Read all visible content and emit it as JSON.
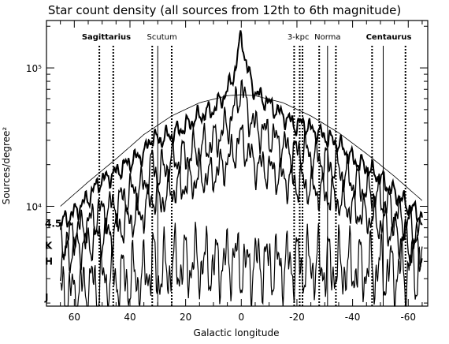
{
  "chart_data": {
    "type": "line",
    "title": "Star count density (all sources from 12th to 6th magnitude)",
    "xlabel": "Galactic longitude",
    "ylabel": "Sources/degree²",
    "x_reversed": true,
    "xlim": [
      70,
      -67
    ],
    "ylim": [
      1900,
      220000
    ],
    "yscale": "log",
    "x_ticks": [
      60,
      40,
      20,
      0,
      -20,
      -40,
      -60
    ],
    "x_tick_labels": [
      "60",
      "40",
      "20",
      "0",
      "-20",
      "-40",
      "-60"
    ],
    "y_ticks": [
      10000,
      100000
    ],
    "y_tick_labels": [
      "10⁴",
      "10⁵"
    ],
    "grid": false,
    "legend": "none",
    "arm_tangents": [
      {
        "name": "Sagittarius",
        "bold": true,
        "lines": [
          {
            "x": 51,
            "style": "dotted"
          },
          {
            "x": 46,
            "style": "dotted"
          }
        ]
      },
      {
        "name": "Scutum",
        "bold": false,
        "lines": [
          {
            "x": 32,
            "style": "dotted"
          },
          {
            "x": 30,
            "style": "solid"
          },
          {
            "x": 25,
            "style": "dotted"
          }
        ]
      },
      {
        "name": "3-kpc",
        "bold": false,
        "lines": [
          {
            "x": -19,
            "style": "dotted"
          },
          {
            "x": -21,
            "style": "dotted"
          },
          {
            "x": -22,
            "style": "dotted"
          }
        ]
      },
      {
        "name": "Norma",
        "bold": false,
        "lines": [
          {
            "x": -28,
            "style": "dotted"
          },
          {
            "x": -31,
            "style": "solid"
          },
          {
            "x": -34,
            "style": "dotted"
          }
        ]
      },
      {
        "name": "Centaurus",
        "bold": true,
        "lines": [
          {
            "x": -47,
            "style": "dotted"
          },
          {
            "x": -51,
            "style": "solid"
          },
          {
            "x": -59,
            "style": "dotted"
          }
        ]
      }
    ],
    "series": [
      {
        "name": "4.5",
        "values": [
          [
            65,
            7500
          ],
          [
            60,
            9000
          ],
          [
            55,
            11500
          ],
          [
            51,
            15000
          ],
          [
            46,
            17000
          ],
          [
            40,
            21000
          ],
          [
            35,
            24000
          ],
          [
            32,
            32000
          ],
          [
            30,
            30000
          ],
          [
            25,
            33000
          ],
          [
            20,
            38000
          ],
          [
            15,
            45000
          ],
          [
            10,
            50000
          ],
          [
            5,
            68000
          ],
          [
            2,
            100000
          ],
          [
            0,
            175000
          ],
          [
            -2,
            100000
          ],
          [
            -5,
            66000
          ],
          [
            -10,
            55000
          ],
          [
            -15,
            45000
          ],
          [
            -20,
            38000
          ],
          [
            -22,
            40000
          ],
          [
            -25,
            36000
          ],
          [
            -30,
            32000
          ],
          [
            -35,
            28000
          ],
          [
            -40,
            22000
          ],
          [
            -45,
            19000
          ],
          [
            -50,
            16000
          ],
          [
            -55,
            12500
          ],
          [
            -60,
            10000
          ],
          [
            -65,
            8500
          ]
        ]
      },
      {
        "name": "K",
        "values": [
          [
            65,
            5200
          ],
          [
            60,
            6500
          ],
          [
            55,
            7500
          ],
          [
            51,
            9000
          ],
          [
            46,
            10000
          ],
          [
            40,
            12500
          ],
          [
            35,
            14000
          ],
          [
            32,
            20000
          ],
          [
            30,
            17000
          ],
          [
            25,
            21000
          ],
          [
            20,
            23000
          ],
          [
            15,
            26000
          ],
          [
            10,
            29000
          ],
          [
            5,
            38000
          ],
          [
            2,
            52000
          ],
          [
            0,
            75000
          ],
          [
            -2,
            50000
          ],
          [
            -5,
            37000
          ],
          [
            -10,
            33000
          ],
          [
            -15,
            27000
          ],
          [
            -20,
            24000
          ],
          [
            -22,
            26000
          ],
          [
            -25,
            23000
          ],
          [
            -30,
            21000
          ],
          [
            -35,
            18500
          ],
          [
            -40,
            15000
          ],
          [
            -45,
            13000
          ],
          [
            -50,
            11500
          ],
          [
            -55,
            9000
          ],
          [
            -60,
            7500
          ],
          [
            -65,
            6200
          ]
        ]
      },
      {
        "name": "H",
        "values": [
          [
            65,
            4000
          ],
          [
            60,
            5000
          ],
          [
            55,
            5400
          ],
          [
            51,
            6000
          ],
          [
            46,
            6500
          ],
          [
            40,
            8000
          ],
          [
            35,
            9000
          ],
          [
            32,
            12000
          ],
          [
            30,
            10500
          ],
          [
            25,
            13000
          ],
          [
            20,
            14500
          ],
          [
            15,
            16000
          ],
          [
            10,
            17000
          ],
          [
            5,
            21000
          ],
          [
            2,
            26000
          ],
          [
            0,
            32000
          ],
          [
            -2,
            25000
          ],
          [
            -5,
            20000
          ],
          [
            -10,
            18500
          ],
          [
            -15,
            16000
          ],
          [
            -20,
            14500
          ],
          [
            -22,
            15000
          ],
          [
            -25,
            13500
          ],
          [
            -30,
            12500
          ],
          [
            -35,
            11000
          ],
          [
            -40,
            9500
          ],
          [
            -45,
            8500
          ],
          [
            -50,
            7500
          ],
          [
            -55,
            6500
          ],
          [
            -60,
            5300
          ],
          [
            -65,
            4600
          ]
        ]
      },
      {
        "name": "J",
        "values": [
          [
            65,
            2200
          ],
          [
            60,
            2300
          ],
          [
            55,
            2600
          ],
          [
            51,
            2800
          ],
          [
            46,
            2900
          ],
          [
            40,
            3000
          ],
          [
            35,
            3000
          ],
          [
            32,
            4000
          ],
          [
            30,
            3200
          ],
          [
            25,
            3700
          ],
          [
            20,
            3800
          ],
          [
            15,
            3900
          ],
          [
            10,
            3700
          ],
          [
            5,
            4000
          ],
          [
            2,
            4200
          ],
          [
            0,
            3800
          ],
          [
            -2,
            3500
          ],
          [
            -5,
            3900
          ],
          [
            -10,
            3800
          ],
          [
            -15,
            3700
          ],
          [
            -20,
            3900
          ],
          [
            -22,
            3700
          ],
          [
            -25,
            3800
          ],
          [
            -30,
            3700
          ],
          [
            -35,
            3600
          ],
          [
            -40,
            3600
          ],
          [
            -45,
            3500
          ],
          [
            -50,
            3500
          ],
          [
            -55,
            3300
          ],
          [
            -60,
            3400
          ],
          [
            -65,
            3600
          ]
        ]
      }
    ],
    "model_curve": [
      [
        65,
        10000
      ],
      [
        55,
        15000
      ],
      [
        45,
        22000
      ],
      [
        35,
        33000
      ],
      [
        25,
        45000
      ],
      [
        15,
        56000
      ],
      [
        5,
        63000
      ],
      [
        0,
        64000
      ],
      [
        -5,
        63000
      ],
      [
        -15,
        56000
      ],
      [
        -25,
        45000
      ],
      [
        -35,
        34000
      ],
      [
        -45,
        24000
      ],
      [
        -55,
        16500
      ],
      [
        -65,
        11000
      ]
    ]
  }
}
